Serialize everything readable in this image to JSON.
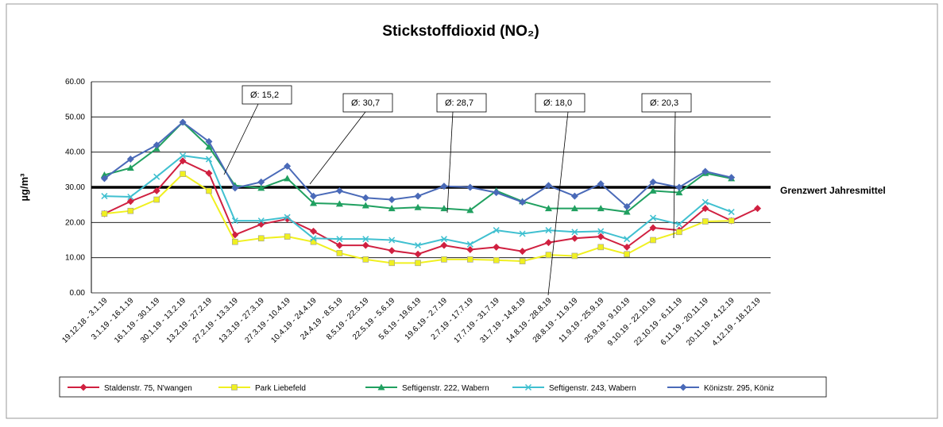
{
  "chart_data": {
    "type": "line",
    "title": "Stickstoffdioxid (NO₂)",
    "y_label": "µg/m³",
    "categories": [
      "19.12.18 - 3.1.19",
      "3.1.19 - 16.1.19",
      "16.1.19 - 30.1.19",
      "30.1.19 - 13.2.19",
      "13.2.19 - 27.2.19",
      "27.2.19 - 13.3.19",
      "13.3.19 - 27.3.19",
      "27.3.19 - 10.4.19",
      "10.4.19 - 24.4.19",
      "24.4.19 - 8.5.19",
      "8.5.19 - 22.5.19",
      "22.5.19 - 5.6.19",
      "5.6.19 - 19.6.19",
      "19.6.19 - 2.7.19",
      "2.7.19 - 17.7.19",
      "17.7.19 - 31.7.19",
      "31.7.19 - 14.8.19",
      "14.8.19 - 28.8.19",
      "28.8.19 - 11.9.19",
      "11.9.19 - 25.9.19",
      "25.9.19 - 9.10.19",
      "9.10.19 - 22.10.19",
      "22.10.19 - 6.11.19",
      "6.11.19 - 20.11.19",
      "20.11.19 - 4.12.19",
      "4.12.19 - 18.12.19"
    ],
    "series": [
      {
        "name": "Staldenstr. 75, N'wangen",
        "color": "#d02040",
        "marker": "diamond",
        "values": [
          22.5,
          26,
          29,
          37.5,
          34,
          16.5,
          19.5,
          21,
          17.5,
          13.5,
          13.5,
          12,
          11,
          13.5,
          12.3,
          13,
          11.8,
          14.3,
          15.5,
          16,
          13,
          18.5,
          17.8,
          24,
          20.5,
          24
        ]
      },
      {
        "name": "Park Liebefeld",
        "color": "#f0f020",
        "marker": "square",
        "values": [
          22.5,
          23.3,
          26.5,
          33.8,
          29,
          14.5,
          15.5,
          16,
          14.5,
          11.3,
          9.5,
          8.5,
          8.5,
          9.5,
          9.5,
          9.3,
          9,
          10.8,
          10.5,
          13,
          11,
          15,
          17.3,
          20.3,
          20.5,
          null
        ]
      },
      {
        "name": "Seftigenstr. 222, Wabern",
        "color": "#20a060",
        "marker": "triangle",
        "values": [
          33.5,
          35.5,
          41,
          48.5,
          41.5,
          30.5,
          29.8,
          32.5,
          25.5,
          25.3,
          24.8,
          24,
          24.3,
          24,
          23.5,
          29,
          26,
          24,
          24,
          24,
          23,
          29,
          28.5,
          34,
          32.5,
          null
        ]
      },
      {
        "name": "Seftigenstr. 243, Wabern",
        "color": "#40c0d0",
        "marker": "cross",
        "values": [
          27.5,
          27.3,
          33,
          39,
          38,
          20.5,
          20.5,
          21.5,
          15.5,
          15.3,
          15.3,
          15,
          13.5,
          15.3,
          13.8,
          17.8,
          16.8,
          17.8,
          17.3,
          17.5,
          15.3,
          21.3,
          19.5,
          25.8,
          23,
          null
        ]
      },
      {
        "name": "Könizstr. 295, Köniz",
        "color": "#4a6ab8",
        "marker": "diamond",
        "values": [
          32.5,
          38,
          42,
          48.5,
          43,
          29.8,
          31.5,
          36,
          27.5,
          29,
          27,
          26.5,
          27.5,
          30.3,
          30,
          28.5,
          25.8,
          30.5,
          27.5,
          31,
          24.5,
          31.5,
          30,
          34.5,
          32.8,
          null
        ]
      }
    ],
    "ylim": [
      0,
      60
    ],
    "yticks": [
      {
        "value": 0,
        "label": "0.00"
      },
      {
        "value": 10,
        "label": "10.00"
      },
      {
        "value": 20,
        "label": "20.00"
      },
      {
        "value": 30,
        "label": "30.00"
      },
      {
        "value": 40,
        "label": "40.00"
      },
      {
        "value": 50,
        "label": "50.00"
      },
      {
        "value": 60,
        "label": "60.00"
      }
    ],
    "grid": true,
    "threshold": {
      "value": 30,
      "label": "Grenzwert Jahresmittel"
    },
    "annotations": [
      {
        "text": "Ø: 15,2"
      },
      {
        "text": "Ø: 30,7"
      },
      {
        "text": "Ø: 28,7"
      },
      {
        "text": "Ø: 18,0"
      },
      {
        "text": "Ø: 20,3"
      }
    ],
    "legend": "bottom"
  }
}
